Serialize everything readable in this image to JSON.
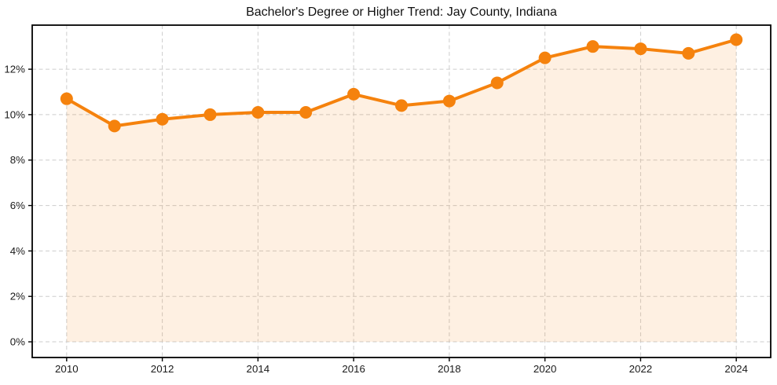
{
  "chart_data": {
    "type": "line",
    "title": "Bachelor's Degree or Higher Trend: Jay County, Indiana",
    "x": [
      2010,
      2011,
      2012,
      2013,
      2014,
      2015,
      2016,
      2017,
      2018,
      2019,
      2020,
      2021,
      2022,
      2023,
      2024
    ],
    "values": [
      10.7,
      9.5,
      9.8,
      10.0,
      10.1,
      10.1,
      10.9,
      10.4,
      10.6,
      11.4,
      12.5,
      13.0,
      12.9,
      12.7,
      13.3
    ],
    "series_name": "Bachelor's degree or higher (%)",
    "xlabel": "",
    "ylabel": "",
    "y_tick_suffix": "%",
    "xticks": [
      2010,
      2012,
      2014,
      2016,
      2018,
      2020,
      2022,
      2024
    ],
    "yticks": [
      0,
      2,
      4,
      6,
      8,
      10,
      12
    ],
    "xlim": [
      2009.28,
      2024.72
    ],
    "ylim": [
      -0.69,
      13.94
    ],
    "grid": true,
    "legend": "none",
    "area_fill_to_zero": true,
    "colors": {
      "line": "#f5820d",
      "marker": "#f5820d",
      "fill": "rgba(245, 129, 13, 0.12)",
      "grid": "#cdcdcd",
      "spine": "#000000",
      "tick_label": "#1a1a1a",
      "title": "#111111",
      "background": "#ffffff"
    }
  }
}
